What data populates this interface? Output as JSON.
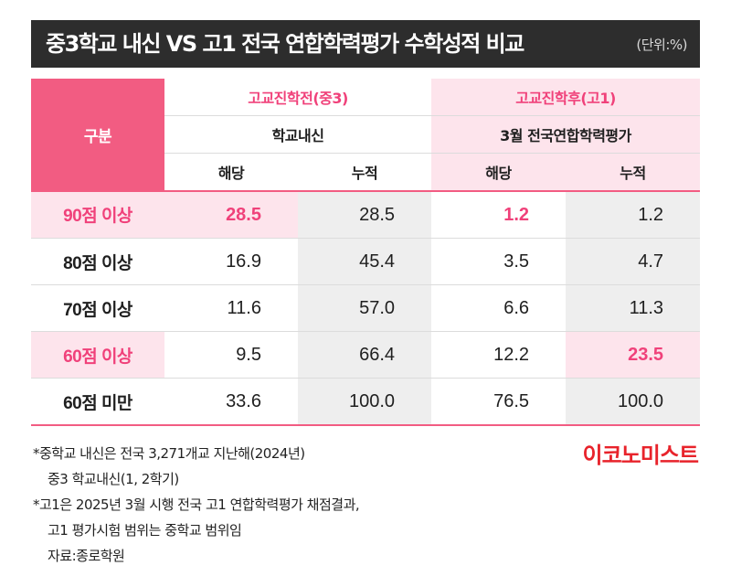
{
  "title": "중3학교 내신 VS 고1 전국 연합학력평가 수학성적 비교",
  "unit": "(단위:%)",
  "header": {
    "gubun": "구분",
    "group_before": "고교진학전(중3)",
    "group_after": "고교진학후(고1)",
    "sub_before": "학교내신",
    "sub_after": "3월 전국연합학력평가",
    "col_haedang": "해당",
    "col_nujeok": "누적"
  },
  "rows": [
    {
      "label": "90점 이상",
      "v": [
        "28.5",
        "28.5",
        "1.2",
        "1.2"
      ]
    },
    {
      "label": "80점 이상",
      "v": [
        "16.9",
        "45.4",
        "3.5",
        "4.7"
      ]
    },
    {
      "label": "70점 이상",
      "v": [
        "11.6",
        "57.0",
        "6.6",
        "11.3"
      ]
    },
    {
      "label": "60점 이상",
      "v": [
        "9.5",
        "66.4",
        "12.2",
        "23.5"
      ]
    },
    {
      "label": "60점 미만",
      "v": [
        "33.6",
        "100.0",
        "76.5",
        "100.0"
      ]
    }
  ],
  "notes": [
    "*중학교 내신은 전국 3,271개교 지난해(2024년)",
    "중3 학교내신(1, 2학기)",
    "*고1은 2025년 3월 시행 전국 고1 연합학력평가 채점결과,",
    "고1 평가시험 범위는 중학교 범위임",
    "자료:종로학원"
  ],
  "brand": "이코노미스트",
  "colors": {
    "accent": "#f25c82",
    "highlight_text": "#f0417a",
    "pink_bg": "#fde4ec",
    "brand": "#e8232b"
  }
}
